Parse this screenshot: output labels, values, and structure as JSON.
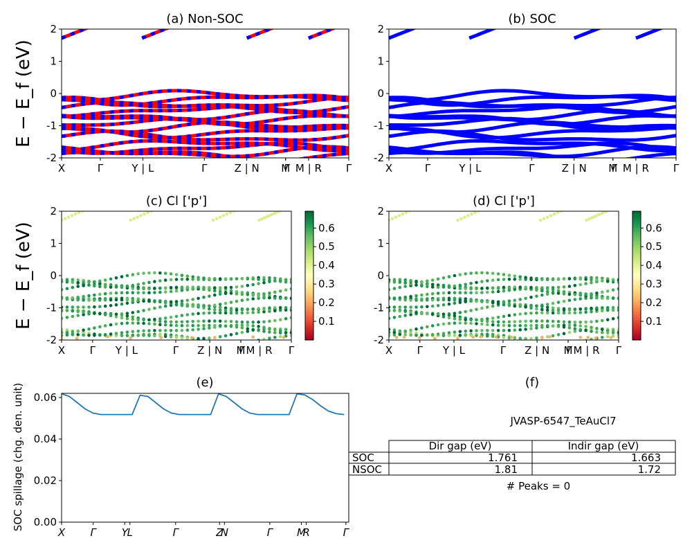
{
  "chart_data": [
    {
      "panel": "a",
      "type": "line",
      "title": "(a) Non-SOC",
      "ylabel": "E − E_f (eV)",
      "ylim": [
        -2,
        2
      ],
      "yticks": [
        -2,
        -1,
        0,
        1,
        2
      ],
      "xticks": [
        "X",
        "Γ",
        "Y | L",
        "Γ",
        "Z | N",
        "M",
        "Γ",
        "M | R",
        "Γ"
      ],
      "legend": "none",
      "series_colors": [
        "#ff0000",
        "#0000ff"
      ]
    },
    {
      "panel": "b",
      "type": "line",
      "title": "(b) SOC",
      "ylim": [
        -2,
        2
      ],
      "yticks": [
        -2,
        -1,
        0,
        1,
        2
      ],
      "xticks": [
        "X",
        "Γ",
        "Y | L",
        "Γ",
        "Z | N",
        "M",
        "Γ",
        "M | R",
        "Γ"
      ],
      "series_colors": [
        "#0000ff"
      ]
    },
    {
      "panel": "c",
      "type": "scatter",
      "title": "(c)  Cl ['p']",
      "ylabel": "E − E_f (eV)",
      "ylim": [
        -2,
        2
      ],
      "yticks": [
        -2,
        -1,
        0,
        1,
        2
      ],
      "xticks": [
        "X",
        "Γ",
        "Y | L",
        "Γ",
        "Z | N",
        "M",
        "Γ",
        "M | R",
        "Γ"
      ],
      "colorbar": {
        "ticks": [
          "0.1",
          "0.2",
          "0.3",
          "0.4",
          "0.5",
          "0.6"
        ],
        "range": [
          0.0,
          0.69
        ],
        "colormap": "RdYlGn"
      }
    },
    {
      "panel": "d",
      "type": "scatter",
      "title": "(d) Cl ['p']",
      "ylim": [
        -2,
        2
      ],
      "yticks": [
        -2,
        -1,
        0,
        1,
        2
      ],
      "xticks": [
        "X",
        "Γ",
        "Y | L",
        "Γ",
        "Z | N",
        "M",
        "Γ",
        "M | R",
        "Γ"
      ],
      "colorbar": {
        "ticks": [
          "0.1",
          "0.2",
          "0.3",
          "0.4",
          "0.5",
          "0.6"
        ],
        "range": [
          0.0,
          0.69
        ],
        "colormap": "RdYlGn"
      }
    },
    {
      "panel": "e",
      "type": "line",
      "title": "(e)",
      "ylabel": "SOC spillage (chg. den. unit)",
      "ylim": [
        0,
        0.062
      ],
      "yticks": [
        "0.00",
        "0.02",
        "0.04",
        "0.06"
      ],
      "xticks": [
        "X",
        "Γ",
        "Y",
        "L",
        "Γ",
        "Z",
        "N",
        "Γ",
        "M",
        "R",
        "Γ"
      ],
      "series": [
        {
          "color": "#1f77b4",
          "x": [
            0,
            0.25,
            0.5,
            0.75,
            1.0,
            1.25,
            1.5,
            1.75,
            2.0,
            2.25,
            2.5,
            2.75,
            3.0,
            3.25,
            3.5,
            3.75,
            4.0,
            4.25,
            4.5,
            4.75,
            5.0,
            5.25,
            5.5,
            5.75,
            6.0,
            6.25,
            6.5,
            6.75,
            7.0,
            7.25,
            7.5,
            7.75,
            8.0,
            8.25,
            8.5,
            8.75,
            9.0
          ],
          "y": [
            0.0618,
            0.0605,
            0.0575,
            0.0545,
            0.0525,
            0.0518,
            0.0518,
            0.0518,
            0.0518,
            0.0518,
            0.0611,
            0.0605,
            0.0575,
            0.0545,
            0.0525,
            0.0518,
            0.0518,
            0.0518,
            0.0518,
            0.0518,
            0.0618,
            0.0605,
            0.0575,
            0.0545,
            0.0525,
            0.0518,
            0.0518,
            0.0518,
            0.0518,
            0.0518,
            0.0618,
            0.0612,
            0.059,
            0.056,
            0.0535,
            0.0522,
            0.0518
          ]
        }
      ]
    }
  ],
  "info_panel": {
    "title": "(f)",
    "material": "JVASP-6547_TeAuCl7",
    "table": {
      "headers": [
        "",
        "Dir gap (eV)",
        "Indir gap (eV)"
      ],
      "rows": [
        [
          "SOC",
          "1.761",
          "1.663"
        ],
        [
          "NSOC",
          "1.81",
          "1.72"
        ]
      ]
    },
    "peaks": "# Peaks = 0"
  }
}
